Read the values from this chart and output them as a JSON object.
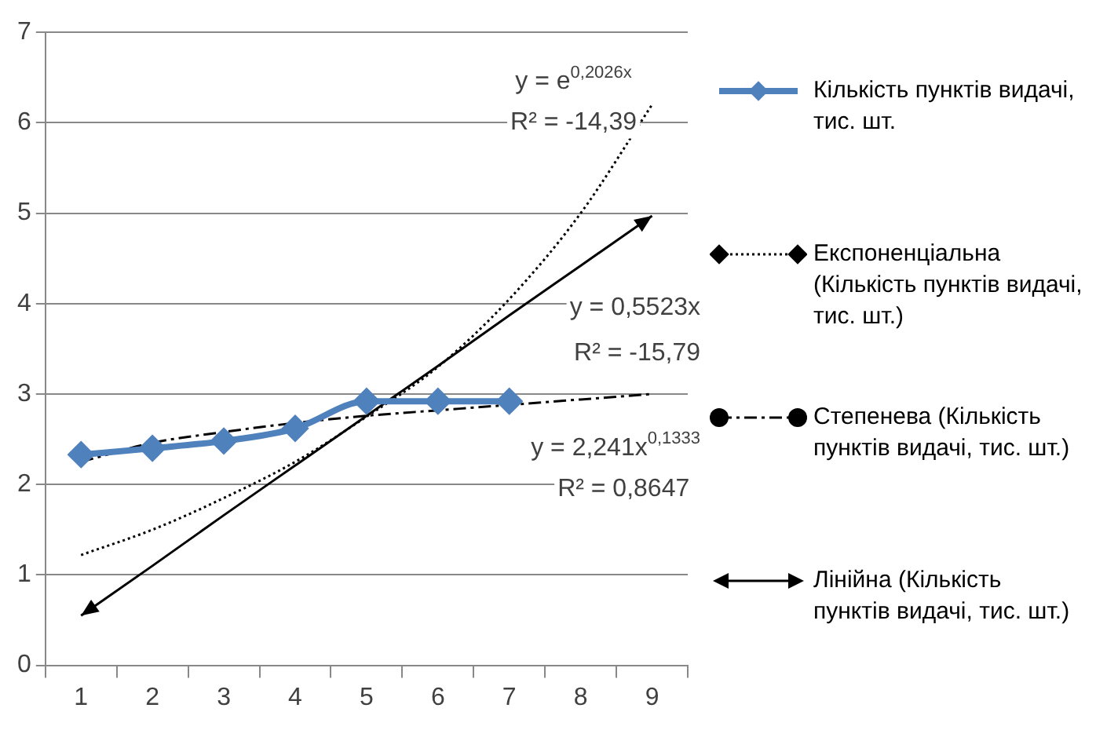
{
  "chart_data": {
    "type": "line",
    "categories": [
      "1",
      "2",
      "3",
      "4",
      "5",
      "6",
      "7",
      "8",
      "9"
    ],
    "series": [
      {
        "name": "Кількість пунктів видачі, тис. шт.",
        "color": "#4f81bd",
        "marker": "diamond",
        "line_style": "solid",
        "values": [
          2.33,
          2.4,
          2.48,
          2.62,
          2.92,
          2.92,
          2.92,
          null,
          null
        ]
      },
      {
        "name": "Експоненціальна (Кількість пунктів видачі, тис. шт.)",
        "color": "#000000",
        "line_style": "dotted",
        "values": [
          1.22,
          1.5,
          1.85,
          2.25,
          2.75,
          3.3,
          4.05,
          5.0,
          6.2
        ]
      },
      {
        "name": "Степенева (Кількість пунктів видачі, тис. шт.)",
        "color": "#000000",
        "line_style": "dashed",
        "values": [
          2.25,
          2.46,
          2.58,
          2.68,
          2.76,
          2.82,
          2.88,
          2.94,
          3.0
        ]
      },
      {
        "name": "Лінійна (Кількість пунктів видачі, тис. шт.)",
        "color": "#000000",
        "marker": "none",
        "line_style": "solid",
        "values": [
          0.55,
          1.1,
          1.66,
          2.21,
          2.76,
          3.31,
          3.87,
          4.42,
          4.97
        ]
      }
    ],
    "ylim": [
      0,
      7
    ],
    "yticks": [
      0,
      1,
      2,
      3,
      4,
      5,
      6,
      7
    ],
    "grid": "y",
    "legend": "right",
    "annotations": [
      "y = e$^{0,2026x}$",
      "R² = -14,39",
      "y = 0,5523x",
      "R² = -15,79",
      "y = 2,241x$^{0,1333}$",
      "R² = 0,8647"
    ]
  }
}
